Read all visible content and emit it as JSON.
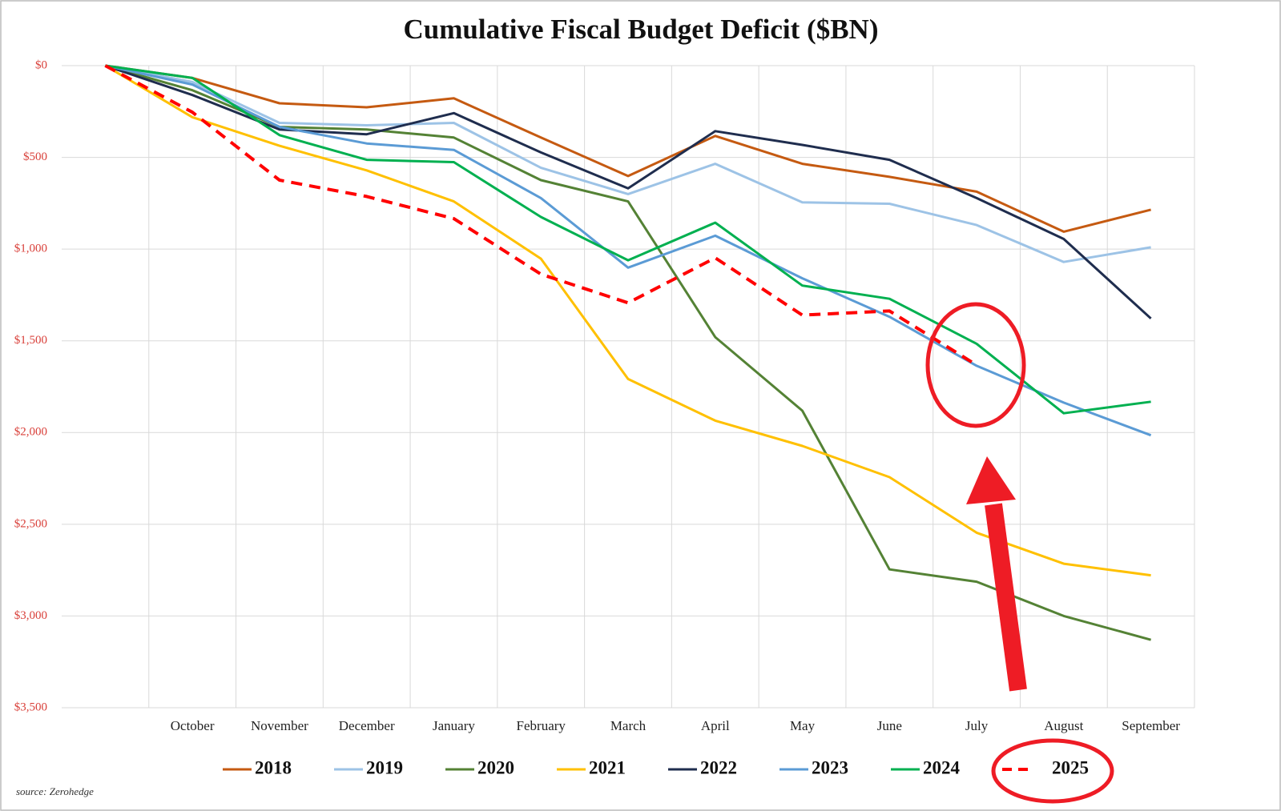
{
  "chart_data": {
    "type": "line",
    "title": "Cumulative Fiscal Budget Deficit ($BN)",
    "source": "source: Zerohedge",
    "categories": [
      null,
      "October",
      "November",
      "December",
      "January",
      "February",
      "March",
      "April",
      "May",
      "June",
      "July",
      "August",
      "September"
    ],
    "ylim": [
      0,
      3500
    ],
    "y_inverted": true,
    "yticks": [
      {
        "value": 0,
        "label": "$0"
      },
      {
        "value": 500,
        "label": "$500"
      },
      {
        "value": 1000,
        "label": "$1,000"
      },
      {
        "value": 1500,
        "label": "$1,500"
      },
      {
        "value": 2000,
        "label": "$2,000"
      },
      {
        "value": 2500,
        "label": "$2,500"
      },
      {
        "value": 3000,
        "label": "$3,000"
      },
      {
        "value": 3500,
        "label": "$3,500"
      }
    ],
    "ytick_color": "#d9403a",
    "grid": true,
    "legend": "bottom",
    "series": [
      {
        "name": "2018",
        "color": "#c55a11",
        "values": [
          0,
          67,
          205,
          227,
          178,
          392,
          602,
          383,
          535,
          606,
          687,
          905,
          785
        ]
      },
      {
        "name": "2019",
        "color": "#9dc3e6",
        "values": [
          0,
          89,
          312,
          325,
          312,
          557,
          700,
          535,
          745,
          753,
          869,
          1070,
          990
        ]
      },
      {
        "name": "2020",
        "color": "#548235",
        "values": [
          0,
          134,
          334,
          348,
          392,
          624,
          740,
          1480,
          1881,
          2746,
          2813,
          3000,
          3130
        ]
      },
      {
        "name": "2021",
        "color": "#ffc000",
        "values": [
          0,
          281,
          437,
          571,
          740,
          1052,
          1708,
          1935,
          2073,
          2243,
          2546,
          2715,
          2778
        ]
      },
      {
        "name": "2022",
        "color": "#1f2d4e",
        "values": [
          0,
          160,
          348,
          374,
          259,
          473,
          669,
          357,
          432,
          513,
          722,
          945,
          1378
        ]
      },
      {
        "name": "2023",
        "color": "#5b9bd5",
        "values": [
          0,
          103,
          334,
          424,
          459,
          722,
          1101,
          927,
          1159,
          1369,
          1636,
          1837,
          2015
        ]
      },
      {
        "name": "2024",
        "color": "#00b050",
        "values": [
          0,
          67,
          379,
          513,
          526,
          825,
          1061,
          856,
          1199,
          1271,
          1516,
          1895,
          1832
        ]
      },
      {
        "name": "2025",
        "color": "#ff0000",
        "dashed": true,
        "values": [
          0,
          254,
          624,
          713,
          834,
          1137,
          1293,
          1048,
          1360,
          1337,
          1632,
          null,
          null
        ]
      }
    ]
  }
}
